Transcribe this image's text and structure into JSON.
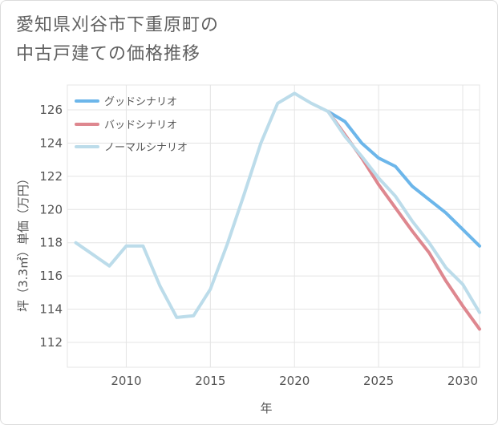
{
  "title_lines": [
    "愛知県刈谷市下重原町の",
    "中古戸建ての価格推移"
  ],
  "chart_data": {
    "type": "line",
    "title": "愛知県刈谷市下重原町の中古戸建ての価格推移",
    "xlabel": "年",
    "ylabel": "坪（3.3㎡）単価（万円）",
    "xlim": [
      2006.5,
      2031
    ],
    "ylim": [
      110.5,
      127.5
    ],
    "xticks": [
      2010,
      2015,
      2020,
      2025,
      2030
    ],
    "yticks": [
      112,
      114,
      116,
      118,
      120,
      122,
      124,
      126
    ],
    "legend_position": "top-left",
    "series": [
      {
        "name": "グッドシナリオ",
        "color": "#6cb6ea",
        "x": [
          2022,
          2023,
          2024,
          2025,
          2026,
          2027,
          2028,
          2029,
          2030,
          2031
        ],
        "values": [
          125.9,
          125.3,
          124.0,
          123.1,
          122.6,
          121.4,
          120.6,
          119.8,
          118.8,
          117.8
        ]
      },
      {
        "name": "バッドシナリオ",
        "color": "#de878f",
        "x": [
          2022,
          2023,
          2024,
          2025,
          2026,
          2027,
          2028,
          2029,
          2030,
          2031
        ],
        "values": [
          125.9,
          124.5,
          123.1,
          121.5,
          120.1,
          118.7,
          117.4,
          115.7,
          114.2,
          112.8
        ]
      },
      {
        "name": "ノーマルシナリオ",
        "color": "#bcdcea",
        "x": [
          2007,
          2008,
          2009,
          2010,
          2011,
          2012,
          2013,
          2014,
          2015,
          2016,
          2017,
          2018,
          2019,
          2020,
          2021,
          2022,
          2023,
          2024,
          2025,
          2026,
          2027,
          2028,
          2029,
          2030,
          2031
        ],
        "values": [
          118.0,
          117.3,
          116.6,
          117.8,
          117.8,
          115.4,
          113.5,
          113.6,
          115.2,
          117.9,
          120.9,
          124.0,
          126.4,
          127.0,
          126.4,
          125.9,
          124.4,
          123.2,
          121.9,
          120.8,
          119.3,
          118.0,
          116.5,
          115.5,
          113.8
        ]
      }
    ]
  }
}
